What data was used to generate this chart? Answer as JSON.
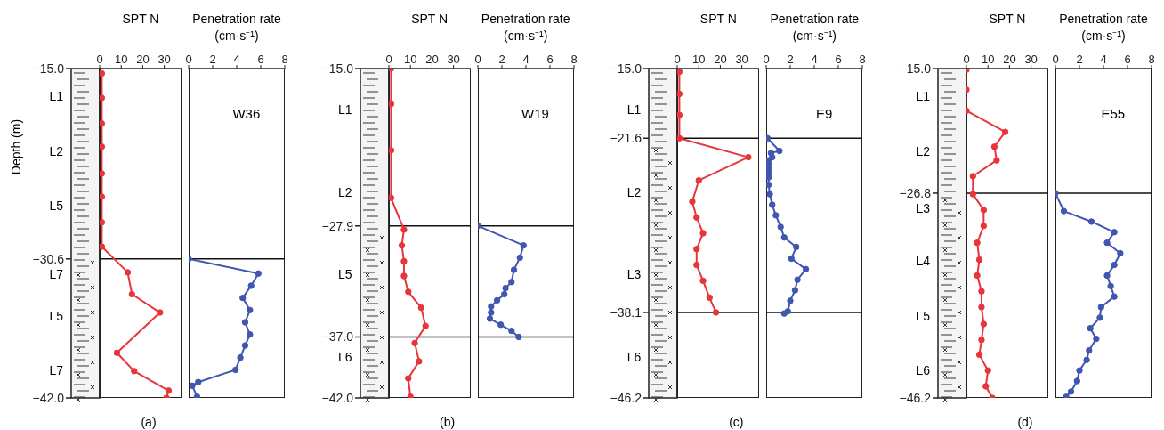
{
  "chart_data": [
    {
      "type": "line",
      "title": "SPT N",
      "subtitle": "(a)",
      "ylabel": "Depth (m)",
      "xlim": [
        0,
        38
      ],
      "xticks": [
        0,
        10,
        20,
        30
      ],
      "ylim": [
        -42,
        -15
      ],
      "yticks": [
        {
          "value": -15,
          "label": "−15.0"
        },
        {
          "value": -30.6,
          "label": "−30.6"
        },
        {
          "value": -42,
          "label": "−42.0"
        }
      ],
      "marker": "circle",
      "ref_lines": [
        {
          "axis": "y",
          "value": -30.6
        }
      ],
      "series": [
        {
          "color": "#e8353b",
          "x": [
            1,
            1,
            1,
            1,
            1,
            1,
            1,
            1,
            13,
            15,
            28,
            8,
            16,
            32,
            31
          ],
          "values": [
            -15.4,
            -17.4,
            -19.5,
            -21.4,
            -23.6,
            -25.5,
            -27.6,
            -29.6,
            -31.7,
            -33.5,
            -35.0,
            -38.3,
            -39.8,
            -41.4,
            -42.0
          ]
        }
      ],
      "annotations": [
        "L1",
        "L2",
        "L5",
        "L7",
        "L5",
        "L7"
      ]
    },
    {
      "type": "line",
      "title": "Penetration rate (cm·s⁻¹)",
      "xlim": [
        0,
        8
      ],
      "xticks": [
        0,
        2,
        4,
        6,
        8
      ],
      "ylim": [
        -42,
        -15
      ],
      "tick_labels": "x",
      "marker": "circle",
      "ref_lines": [
        {
          "axis": "y",
          "value": -30.6
        }
      ],
      "series": [
        {
          "color": "#4056b0",
          "x": [
            0,
            5.8,
            5.2,
            4.5,
            5.1,
            4.7,
            5.1,
            4.7,
            4.3,
            3.9,
            0.8,
            0.3,
            0.7
          ],
          "values": [
            -30.6,
            -31.8,
            -32.8,
            -33.8,
            -34.8,
            -35.8,
            -36.8,
            -37.7,
            -38.7,
            -39.7,
            -40.7,
            -41.0,
            -41.9
          ]
        }
      ],
      "annotations": [
        "W36"
      ]
    },
    {
      "type": "line",
      "title": "SPT N",
      "subtitle": "(b)",
      "xlim": [
        0,
        38
      ],
      "xticks": [
        0,
        10,
        20,
        30
      ],
      "ylim": [
        -42,
        -15
      ],
      "yticks": [
        {
          "value": -15,
          "label": "−15.0"
        },
        {
          "value": -27.9,
          "label": "−27.9"
        },
        {
          "value": -37,
          "label": "−37.0"
        },
        {
          "value": -42,
          "label": "−42.0"
        }
      ],
      "marker": "circle",
      "ref_lines": [
        {
          "axis": "y",
          "value": -27.9
        },
        {
          "axis": "y",
          "value": -37.0
        }
      ],
      "series": [
        {
          "color": "#e8353b",
          "x": [
            1,
            1,
            1,
            1,
            7,
            6,
            7,
            7,
            9,
            15,
            17,
            12,
            14,
            9,
            10
          ],
          "values": [
            -15.0,
            -17.9,
            -21.7,
            -25.6,
            -28.2,
            -29.5,
            -30.8,
            -32.0,
            -33.3,
            -34.6,
            -36.1,
            -37.5,
            -39.0,
            -40.4,
            -41.9
          ]
        }
      ],
      "annotations": [
        "L1",
        "L2",
        "L5",
        "L6"
      ]
    },
    {
      "type": "line",
      "title": "Penetration rate (cm·s⁻¹)",
      "xlim": [
        0,
        8
      ],
      "xticks": [
        0,
        2,
        4,
        6,
        8
      ],
      "ylim": [
        -42,
        -15
      ],
      "tick_labels": "x",
      "marker": "circle",
      "ref_lines": [
        {
          "axis": "y",
          "value": -27.9
        },
        {
          "axis": "y",
          "value": -37.0
        }
      ],
      "series": [
        {
          "color": "#4056b0",
          "x": [
            0,
            3.8,
            3.5,
            3.0,
            2.8,
            2.3,
            2.2,
            1.6,
            1.1,
            1.1,
            1.0,
            1.9,
            2.8,
            3.4
          ],
          "values": [
            -27.9,
            -29.5,
            -30.5,
            -31.5,
            -32.5,
            -33.0,
            -33.5,
            -34.0,
            -34.5,
            -35.0,
            -35.5,
            -36.0,
            -36.5,
            -37.0
          ]
        }
      ],
      "annotations": [
        "W19"
      ]
    },
    {
      "type": "line",
      "title": "SPT N",
      "subtitle": "(c)",
      "xlim": [
        0,
        38
      ],
      "xticks": [
        0,
        10,
        20,
        30
      ],
      "ylim": [
        -46.2,
        -15
      ],
      "yticks": [
        {
          "value": -15,
          "label": "−15.0"
        },
        {
          "value": -21.6,
          "label": "−21.6"
        },
        {
          "value": -38.1,
          "label": "−38.1"
        },
        {
          "value": -46.2,
          "label": "−46.2"
        }
      ],
      "marker": "circle",
      "ref_lines": [
        {
          "axis": "y",
          "value": -21.6
        },
        {
          "axis": "y",
          "value": -38.1
        }
      ],
      "series": [
        {
          "color": "#e8353b",
          "x": [
            1,
            1,
            1,
            1,
            33,
            10,
            7,
            9,
            12,
            9,
            9,
            12,
            15,
            18
          ],
          "values": [
            -15.3,
            -17.4,
            -19.4,
            -21.6,
            -23.4,
            -25.6,
            -27.6,
            -29.1,
            -30.6,
            -32.1,
            -33.6,
            -35.1,
            -36.7,
            -38.1
          ]
        }
      ],
      "annotations": [
        "L1",
        "L2",
        "L3",
        "L6"
      ]
    },
    {
      "type": "line",
      "title": "Penetration rate (cm·s⁻¹)",
      "xlim": [
        0,
        8
      ],
      "xticks": [
        0,
        2,
        4,
        6,
        8
      ],
      "ylim": [
        -46.2,
        -15
      ],
      "tick_labels": "x",
      "marker": "circle",
      "ref_lines": [
        {
          "axis": "y",
          "value": -21.6
        },
        {
          "axis": "y",
          "value": -38.1
        }
      ],
      "series": [
        {
          "color": "#4056b0",
          "x": [
            0.1,
            1.1,
            0.4,
            0.5,
            0.2,
            0.2,
            0.2,
            0.2,
            0.2,
            0.2,
            0.3,
            0.5,
            0.8,
            1.2,
            1.5,
            2.5,
            2.1,
            3.3,
            2.6,
            2.4,
            2.0,
            1.8,
            1.5
          ],
          "values": [
            -21.6,
            -22.8,
            -23.0,
            -23.4,
            -23.7,
            -24.1,
            -24.5,
            -24.9,
            -25.3,
            -26.0,
            -26.9,
            -27.9,
            -28.9,
            -30.0,
            -31.0,
            -31.9,
            -33.0,
            -34.0,
            -35.0,
            -36.0,
            -37.0,
            -38.0,
            -38.2
          ]
        }
      ],
      "annotations": [
        "E9"
      ]
    },
    {
      "type": "line",
      "title": "SPT N",
      "subtitle": "(d)",
      "xlim": [
        0,
        38
      ],
      "xticks": [
        0,
        10,
        20,
        30
      ],
      "ylim": [
        -46.2,
        -15
      ],
      "yticks": [
        {
          "value": -15,
          "label": "−15.0"
        },
        {
          "value": -26.8,
          "label": "−26.8"
        },
        {
          "value": -46.2,
          "label": "−46.2"
        }
      ],
      "marker": "circle",
      "ref_lines": [
        {
          "axis": "y",
          "value": -26.8
        }
      ],
      "series": [
        {
          "color": "#e8353b",
          "x": [
            0,
            0,
            0,
            18,
            13,
            14,
            3,
            3,
            8,
            8,
            5,
            6,
            5,
            7,
            7,
            8,
            7,
            6,
            10,
            9,
            12
          ],
          "values": [
            -15.1,
            -17.0,
            -19.0,
            -21.0,
            -22.4,
            -23.7,
            -25.2,
            -26.9,
            -28.4,
            -29.9,
            -31.5,
            -33.1,
            -34.6,
            -36.1,
            -37.6,
            -39.2,
            -40.7,
            -42.1,
            -43.6,
            -45.1,
            -46.2
          ]
        }
      ],
      "annotations": [
        "L1",
        "L2",
        "L3",
        "L4",
        "L5",
        "L6"
      ]
    },
    {
      "type": "line",
      "title": "Penetration rate (cm·s⁻¹)",
      "xlim": [
        0,
        8
      ],
      "xticks": [
        0,
        2,
        4,
        6,
        8
      ],
      "ylim": [
        -46.2,
        -15
      ],
      "tick_labels": "x",
      "marker": "circle",
      "ref_lines": [
        {
          "axis": "y",
          "value": -26.8
        }
      ],
      "series": [
        {
          "color": "#4056b0",
          "x": [
            0,
            0.7,
            3.0,
            4.9,
            4.3,
            5.4,
            4.9,
            4.3,
            4.6,
            4.9,
            3.8,
            3.7,
            2.9,
            3.4,
            2.8,
            2.6,
            2.0,
            1.8,
            1.3,
            0.9
          ],
          "values": [
            -26.8,
            -28.5,
            -29.5,
            -30.5,
            -31.5,
            -32.5,
            -33.6,
            -34.6,
            -35.6,
            -36.6,
            -37.6,
            -38.6,
            -39.6,
            -40.6,
            -41.7,
            -42.6,
            -43.6,
            -44.6,
            -45.6,
            -46.1
          ]
        }
      ],
      "annotations": [
        "E55"
      ]
    }
  ]
}
